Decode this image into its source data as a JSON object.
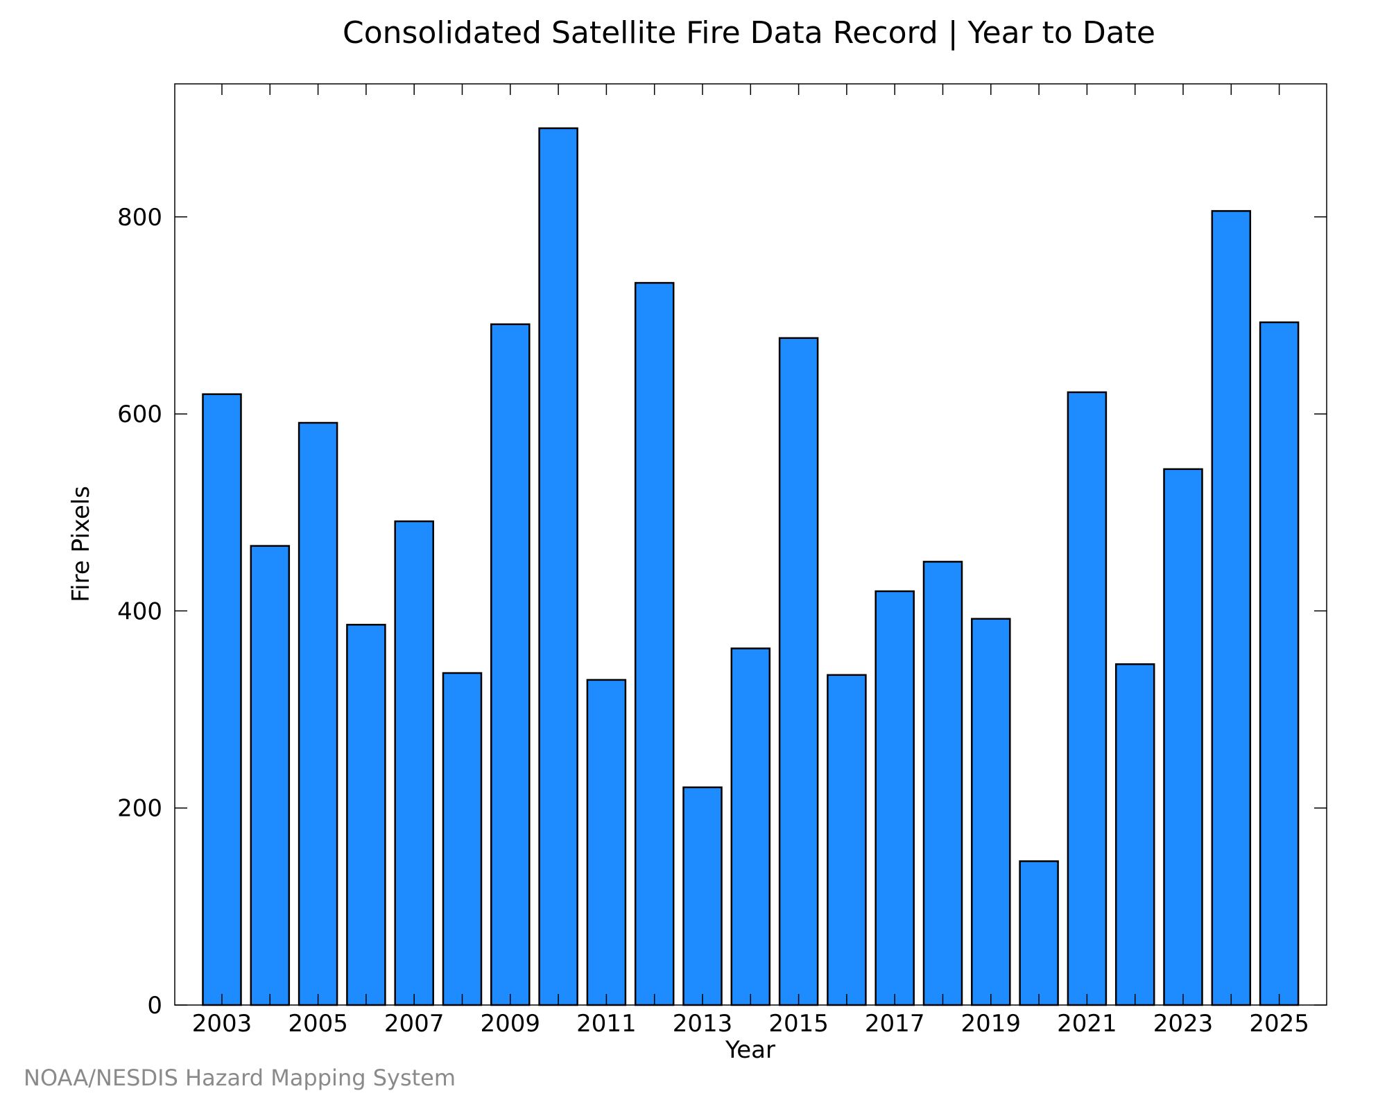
{
  "chart_data": {
    "type": "bar",
    "title": "Consolidated Satellite Fire Data Record | Year to Date",
    "xlabel": "Year",
    "ylabel": "Fire Pixels",
    "categories": [
      "2003",
      "2004",
      "2005",
      "2006",
      "2007",
      "2008",
      "2009",
      "2010",
      "2011",
      "2012",
      "2013",
      "2014",
      "2015",
      "2016",
      "2017",
      "2018",
      "2019",
      "2020",
      "2021",
      "2022",
      "2023",
      "2024",
      "2025"
    ],
    "values": [
      620,
      466,
      591,
      386,
      491,
      337,
      691,
      890,
      330,
      733,
      221,
      362,
      677,
      335,
      420,
      450,
      392,
      146,
      622,
      346,
      544,
      806,
      693
    ],
    "ylim": [
      0,
      935
    ],
    "yticks": [
      0,
      200,
      400,
      600,
      800
    ],
    "xtick_labels": [
      "2003",
      "2005",
      "2007",
      "2009",
      "2011",
      "2013",
      "2015",
      "2017",
      "2019",
      "2021",
      "2023",
      "2025"
    ],
    "bar_color": "#1e8cff",
    "grid": false
  },
  "footer": {
    "credit": "NOAA/NESDIS Hazard Mapping System"
  }
}
